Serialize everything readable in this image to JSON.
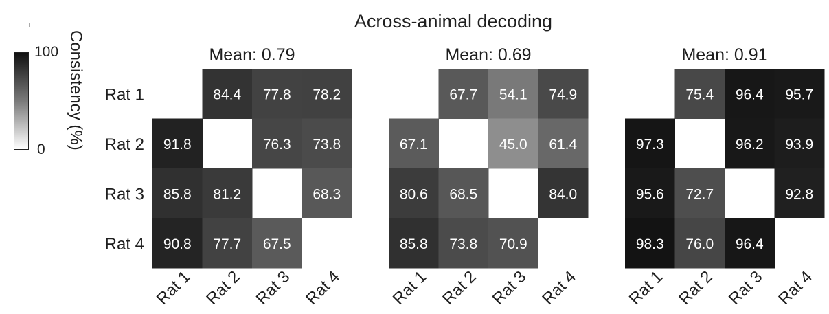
{
  "title": "Across-animal decoding",
  "colorbar": {
    "label": "Consistency (%)",
    "max_label": "100",
    "min_label": "0",
    "range": [
      0,
      100
    ]
  },
  "chart_data": [
    {
      "type": "heatmap",
      "subtitle": "Mean: 0.79",
      "row_labels": [
        "Rat 1",
        "Rat 2",
        "Rat 3",
        "Rat 4"
      ],
      "col_labels": [
        "Rat 1",
        "Rat 2",
        "Rat 3",
        "Rat 4"
      ],
      "values": [
        [
          null,
          84.4,
          77.8,
          78.2
        ],
        [
          91.8,
          null,
          76.3,
          73.8
        ],
        [
          85.8,
          81.2,
          null,
          68.3
        ],
        [
          90.8,
          77.7,
          67.5,
          null
        ]
      ],
      "value_range": [
        0,
        100
      ]
    },
    {
      "type": "heatmap",
      "subtitle": "Mean: 0.69",
      "row_labels": [],
      "col_labels": [
        "Rat 1",
        "Rat 2",
        "Rat 3",
        "Rat 4"
      ],
      "values": [
        [
          null,
          67.7,
          54.1,
          74.9
        ],
        [
          67.1,
          null,
          45.0,
          61.4
        ],
        [
          80.6,
          68.5,
          null,
          84.0
        ],
        [
          85.8,
          73.8,
          70.9,
          null
        ]
      ],
      "value_range": [
        0,
        100
      ]
    },
    {
      "type": "heatmap",
      "subtitle": "Mean: 0.91",
      "row_labels": [],
      "col_labels": [
        "Rat 1",
        "Rat 2",
        "Rat 3",
        "Rat 4"
      ],
      "values": [
        [
          null,
          75.4,
          96.4,
          95.7
        ],
        [
          97.3,
          null,
          96.2,
          93.9
        ],
        [
          95.6,
          72.7,
          null,
          92.8
        ],
        [
          98.3,
          76.0,
          96.4,
          null
        ]
      ],
      "value_range": [
        0,
        100
      ]
    }
  ]
}
